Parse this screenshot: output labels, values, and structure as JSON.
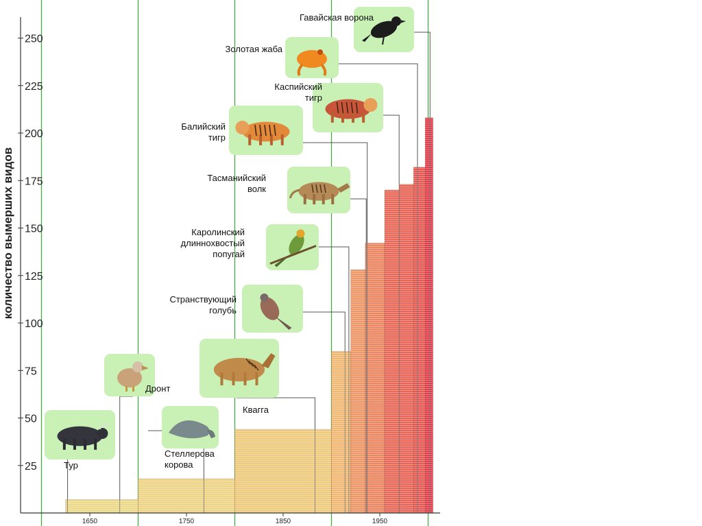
{
  "chart_data": {
    "type": "bar",
    "title": "",
    "ylabel": "количество вымерших видов",
    "xlabel": "",
    "ylim": [
      0,
      260
    ],
    "xlim": [
      1600,
      2010
    ],
    "yticks": [
      25,
      50,
      75,
      100,
      125,
      150,
      175,
      200,
      225,
      250
    ],
    "xticks": [
      "1650",
      "1750",
      "1850",
      "1950"
    ],
    "xtick_values": [
      1650,
      1750,
      1850,
      1950
    ],
    "grid": false,
    "colors": {
      "low": "#ecdc8a",
      "mid": "#f1b06c",
      "high": "#e23a4a"
    },
    "bars": [
      {
        "start": 1625,
        "end": 1700,
        "value": 7
      },
      {
        "start": 1700,
        "end": 1800,
        "value": 18
      },
      {
        "start": 1800,
        "end": 1900,
        "value": 44
      },
      {
        "start": 1900,
        "end": 1920,
        "value": 85
      },
      {
        "start": 1920,
        "end": 1935,
        "value": 128
      },
      {
        "start": 1935,
        "end": 1955,
        "value": 142
      },
      {
        "start": 1955,
        "end": 1970,
        "value": 170
      },
      {
        "start": 1970,
        "end": 1985,
        "value": 173
      },
      {
        "start": 1985,
        "end": 1997,
        "value": 182
      },
      {
        "start": 1997,
        "end": 2005,
        "value": 208
      }
    ],
    "annotations": [
      {
        "lines": [
          "Тур"
        ],
        "icon": "aurochs-icon",
        "year": 1627
      },
      {
        "lines": [
          "Дронт"
        ],
        "icon": "dodo-icon",
        "year": 1681
      },
      {
        "lines": [
          "Стеллерова",
          "корова"
        ],
        "icon": "steller-sea-cow-icon",
        "year": 1768
      },
      {
        "lines": [
          "Квагга"
        ],
        "icon": "quagga-icon",
        "year": 1883
      },
      {
        "lines": [
          "Странствующий",
          "голубь"
        ],
        "icon": "passenger-pigeon-icon",
        "year": 1914
      },
      {
        "lines": [
          "Каролинский",
          "длиннохвостый",
          "попугай"
        ],
        "icon": "carolina-parakeet-icon",
        "year": 1918
      },
      {
        "lines": [
          "Тасманийский",
          "волк"
        ],
        "icon": "thylacine-icon",
        "year": 1936
      },
      {
        "lines": [
          "Балийский",
          "тигр"
        ],
        "icon": "bali-tiger-icon",
        "year": 1937
      },
      {
        "lines": [
          "Каспийский",
          "тигр"
        ],
        "icon": "caspian-tiger-icon",
        "year": 1970
      },
      {
        "lines": [
          "Золотая жаба"
        ],
        "icon": "golden-toad-icon",
        "year": 1989
      },
      {
        "lines": [
          "Гавайская ворона"
        ],
        "icon": "hawaiian-crow-icon",
        "year": 2002
      }
    ]
  }
}
